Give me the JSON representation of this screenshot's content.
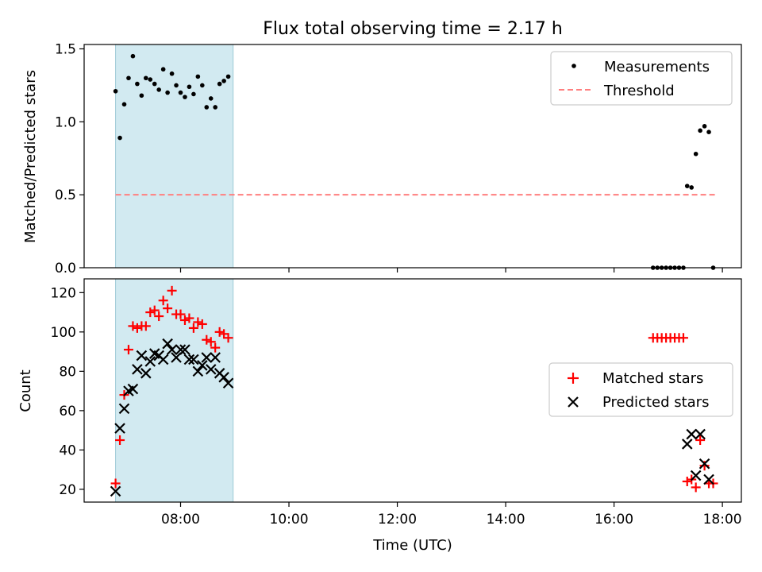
{
  "title": "Flux total observing time = 2.17 h",
  "colors": {
    "shade": "#add8e6",
    "measurement": "#000000",
    "threshold": "#ff7f7f",
    "matched": "#ff0000",
    "predicted": "#000000"
  },
  "chart_data": [
    {
      "type": "scatter",
      "panel": "top",
      "ylabel": "Matched/Predicted stars",
      "xlabel": "",
      "ylim": [
        0.0,
        1.53
      ],
      "yticks": [
        0.0,
        0.5,
        1.0,
        1.5
      ],
      "ytick_labels": [
        "0.0",
        "0.5",
        "1.0",
        "1.5"
      ],
      "xlim_hours": [
        6.22,
        18.35
      ],
      "xticks_hours": [
        8,
        10,
        12,
        14,
        16,
        18
      ],
      "shaded_span_hours": [
        6.8,
        8.97
      ],
      "legend": {
        "position": "top-right",
        "entries": [
          "Measurements",
          "Threshold"
        ]
      },
      "threshold": {
        "name": "Threshold",
        "y": 0.5,
        "x_range_hours": [
          6.8,
          17.88
        ]
      },
      "series": [
        {
          "name": "Measurements",
          "points": [
            [
              6.8,
              1.21
            ],
            [
              6.88,
              0.89
            ],
            [
              6.96,
              1.12
            ],
            [
              7.04,
              1.3
            ],
            [
              7.12,
              1.45
            ],
            [
              7.2,
              1.26
            ],
            [
              7.28,
              1.18
            ],
            [
              7.36,
              1.3
            ],
            [
              7.44,
              1.29
            ],
            [
              7.52,
              1.26
            ],
            [
              7.6,
              1.22
            ],
            [
              7.68,
              1.36
            ],
            [
              7.76,
              1.2
            ],
            [
              7.84,
              1.33
            ],
            [
              7.92,
              1.25
            ],
            [
              8.0,
              1.2
            ],
            [
              8.08,
              1.17
            ],
            [
              8.16,
              1.24
            ],
            [
              8.24,
              1.19
            ],
            [
              8.32,
              1.31
            ],
            [
              8.4,
              1.25
            ],
            [
              8.48,
              1.1
            ],
            [
              8.56,
              1.16
            ],
            [
              8.64,
              1.1
            ],
            [
              8.72,
              1.26
            ],
            [
              8.8,
              1.28
            ],
            [
              8.88,
              1.31
            ],
            [
              16.72,
              0.0
            ],
            [
              16.8,
              0.0
            ],
            [
              16.88,
              0.0
            ],
            [
              16.96,
              0.0
            ],
            [
              17.04,
              0.0
            ],
            [
              17.12,
              0.0
            ],
            [
              17.2,
              0.0
            ],
            [
              17.28,
              0.0
            ],
            [
              17.35,
              0.56
            ],
            [
              17.43,
              0.55
            ],
            [
              17.51,
              0.78
            ],
            [
              17.59,
              0.94
            ],
            [
              17.67,
              0.97
            ],
            [
              17.75,
              0.93
            ],
            [
              17.83,
              0.0
            ]
          ]
        }
      ]
    },
    {
      "type": "scatter",
      "panel": "bottom",
      "ylabel": "Count",
      "xlabel": "Time (UTC)",
      "ylim": [
        13.5,
        127
      ],
      "yticks": [
        20,
        40,
        60,
        80,
        100,
        120
      ],
      "ytick_labels": [
        "20",
        "40",
        "60",
        "80",
        "100",
        "120"
      ],
      "xlim_hours": [
        6.22,
        18.35
      ],
      "xticks_hours": [
        8,
        10,
        12,
        14,
        16,
        18
      ],
      "xtick_labels": [
        "08:00",
        "10:00",
        "12:00",
        "14:00",
        "16:00",
        "18:00"
      ],
      "shaded_span_hours": [
        6.8,
        8.97
      ],
      "legend": {
        "position": "center-right",
        "entries": [
          "Matched stars",
          "Predicted stars"
        ]
      },
      "series": [
        {
          "name": "Matched stars",
          "marker": "plus",
          "points": [
            [
              6.8,
              23
            ],
            [
              6.88,
              45
            ],
            [
              6.96,
              68
            ],
            [
              7.04,
              91
            ],
            [
              7.12,
              103
            ],
            [
              7.2,
              102
            ],
            [
              7.28,
              103
            ],
            [
              7.36,
              103
            ],
            [
              7.44,
              110
            ],
            [
              7.52,
              111
            ],
            [
              7.6,
              108
            ],
            [
              7.68,
              116
            ],
            [
              7.76,
              112
            ],
            [
              7.84,
              121
            ],
            [
              7.92,
              109
            ],
            [
              8.0,
              109
            ],
            [
              8.08,
              106
            ],
            [
              8.16,
              107
            ],
            [
              8.24,
              102
            ],
            [
              8.32,
              105
            ],
            [
              8.4,
              104
            ],
            [
              8.48,
              96
            ],
            [
              8.56,
              95
            ],
            [
              8.64,
              92
            ],
            [
              8.72,
              100
            ],
            [
              8.8,
              99
            ],
            [
              8.88,
              97
            ],
            [
              16.72,
              97
            ],
            [
              16.8,
              97
            ],
            [
              16.88,
              97
            ],
            [
              16.96,
              97
            ],
            [
              17.04,
              97
            ],
            [
              17.12,
              97
            ],
            [
              17.2,
              97
            ],
            [
              17.28,
              97
            ],
            [
              17.35,
              24
            ],
            [
              17.43,
              25
            ],
            [
              17.51,
              21
            ],
            [
              17.59,
              45
            ],
            [
              17.67,
              32
            ],
            [
              17.75,
              23
            ],
            [
              17.83,
              23
            ]
          ]
        },
        {
          "name": "Predicted stars",
          "marker": "x",
          "points": [
            [
              6.8,
              19
            ],
            [
              6.88,
              51
            ],
            [
              6.96,
              61
            ],
            [
              7.04,
              70
            ],
            [
              7.12,
              71
            ],
            [
              7.2,
              81
            ],
            [
              7.28,
              88
            ],
            [
              7.36,
              79
            ],
            [
              7.44,
              85
            ],
            [
              7.52,
              89
            ],
            [
              7.6,
              88
            ],
            [
              7.68,
              86
            ],
            [
              7.76,
              94
            ],
            [
              7.84,
              91
            ],
            [
              7.92,
              87
            ],
            [
              8.0,
              91
            ],
            [
              8.08,
              91
            ],
            [
              8.16,
              86
            ],
            [
              8.24,
              86
            ],
            [
              8.32,
              80
            ],
            [
              8.4,
              83
            ],
            [
              8.48,
              87
            ],
            [
              8.56,
              81
            ],
            [
              8.64,
              87
            ],
            [
              8.72,
              79
            ],
            [
              8.8,
              77
            ],
            [
              8.88,
              74
            ],
            [
              17.35,
              43
            ],
            [
              17.43,
              48
            ],
            [
              17.51,
              27
            ],
            [
              17.59,
              48
            ],
            [
              17.67,
              33
            ],
            [
              17.75,
              25
            ]
          ]
        }
      ]
    }
  ]
}
